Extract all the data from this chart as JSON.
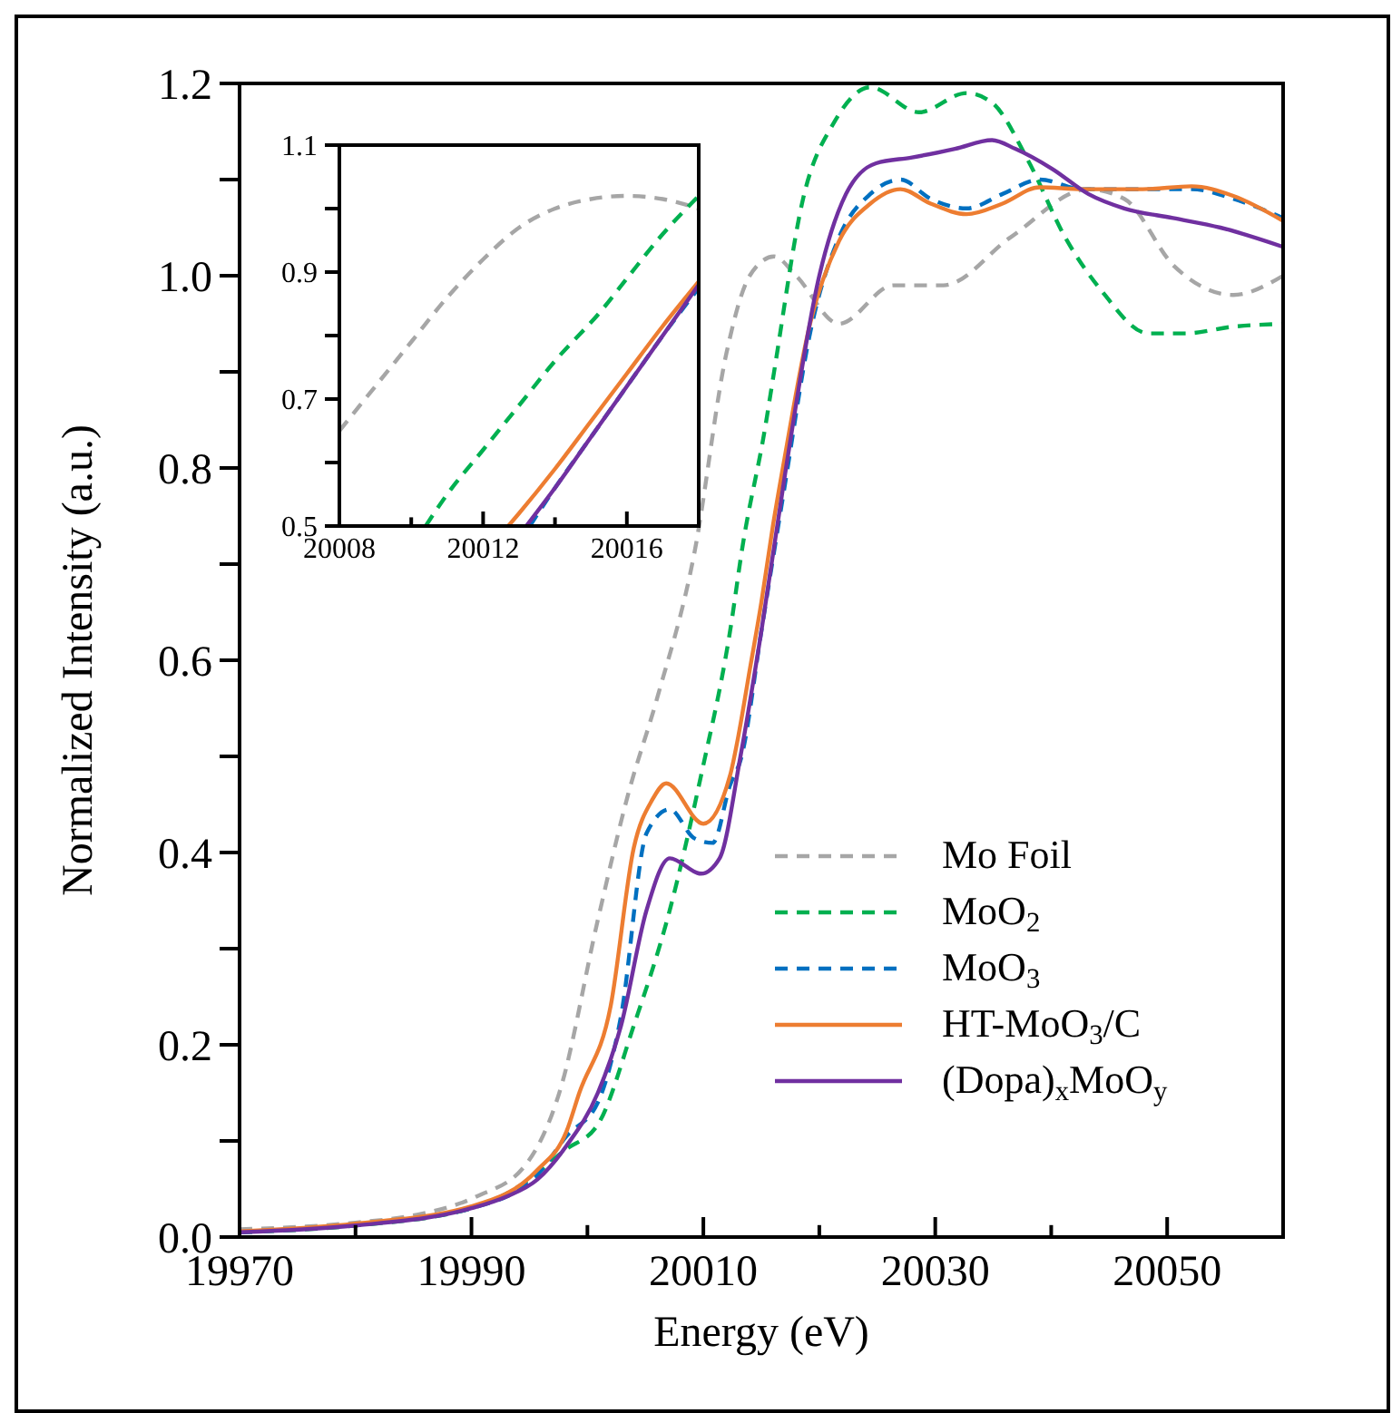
{
  "chart_data": [
    {
      "type": "line",
      "xlabel": "Energy (eV)",
      "ylabel": "Normalized Intensity (a.u.)",
      "xlim": [
        19970,
        20060
      ],
      "ylim": [
        0,
        1.2
      ],
      "xticks": [
        19970,
        {
          "value": 19980,
          "label": null
        },
        19990,
        {
          "value": 20000,
          "label": null
        },
        20010,
        {
          "value": 20020,
          "label": null
        },
        20030,
        {
          "value": 20040,
          "label": null
        },
        20050
      ],
      "yticks": [
        {
          "value": 0,
          "label": "0.0"
        },
        {
          "value": 0.1,
          "label": null
        },
        0.2,
        {
          "value": 0.3,
          "label": null
        },
        0.4,
        {
          "value": 0.5,
          "label": null
        },
        0.6,
        {
          "value": 0.7,
          "label": null
        },
        0.8,
        {
          "value": 0.9,
          "label": null
        },
        {
          "value": 1,
          "label": "1.0"
        },
        {
          "value": 1.1,
          "label": null
        },
        1.2
      ],
      "legend": "bottom right",
      "series": [
        {
          "name": "Mo Foil",
          "color": "#a6a6a6",
          "line_style": "dashed",
          "x": [
            19970,
            19980,
            19985.2,
            19990.4,
            19994.6,
            19997.7,
            20000.9,
            20003.5,
            20006,
            20009.2,
            20012,
            20014,
            20016.1,
            20018,
            20021.7,
            20026.4,
            20030.7,
            20036.5,
            20043.2,
            20046.3,
            20050.6,
            20055.7,
            20060
          ],
          "values": [
            0.008,
            0.015,
            0.023,
            0.042,
            0.074,
            0.155,
            0.33,
            0.46,
            0.56,
            0.71,
            0.92,
            1.0,
            1.02,
            1.0,
            0.95,
            0.99,
            0.99,
            1.04,
            1.09,
            1.08,
            1.01,
            0.98,
            1.0
          ]
        },
        {
          "name": "MoO$_{2}$",
          "color": "#00b050",
          "line_style": "dashed",
          "x": [
            19970,
            19980,
            19990,
            19995,
            19998,
            20000.9,
            20004,
            20007.1,
            20009.8,
            20012.3,
            20013.4,
            20015.3,
            20016.1,
            20018.6,
            20021.3,
            20024.4,
            20028.6,
            20032.7,
            20034.9,
            20038,
            20041.2,
            20044.3,
            20048.4,
            20051.5,
            20055.7,
            20060
          ],
          "values": [
            0.005,
            0.012,
            0.03,
            0.06,
            0.09,
            0.117,
            0.22,
            0.34,
            0.48,
            0.63,
            0.72,
            0.84,
            0.9,
            1.08,
            1.16,
            1.196,
            1.17,
            1.19,
            1.18,
            1.12,
            1.04,
            0.985,
            0.94,
            0.94,
            0.947,
            0.95
          ]
        },
        {
          "name": "MoO$_{3}$",
          "color": "#0070c0",
          "line_style": "dashed",
          "x": [
            19970,
            19980,
            19990,
            19995.7,
            19998.2,
            20000.9,
            20002.9,
            20005.1,
            20007.1,
            20009.2,
            20010.8,
            20012.3,
            20013.3,
            20015,
            20017,
            20019.2,
            20021.7,
            20024.4,
            20027,
            20029.6,
            20032.7,
            20035.8,
            20039,
            20042.7,
            20047.9,
            20052.1,
            20055.7,
            20060
          ],
          "values": [
            0.005,
            0.013,
            0.03,
            0.065,
            0.105,
            0.14,
            0.23,
            0.42,
            0.445,
            0.415,
            0.41,
            0.47,
            0.5,
            0.63,
            0.78,
            0.94,
            1.04,
            1.085,
            1.1,
            1.08,
            1.07,
            1.085,
            1.1,
            1.09,
            1.09,
            1.09,
            1.08,
            1.06
          ]
        },
        {
          "name": "HT-MoO$_{3}$/C",
          "color": "#ed7d31",
          "x": [
            19970,
            19980,
            19990,
            19995.7,
            19998.2,
            19999.3,
            20002,
            20004,
            20005.6,
            20006.8,
            20010,
            20012.3,
            20013,
            20014,
            20015,
            20016,
            20017,
            20019.2,
            20021.7,
            20024.4,
            20027,
            20029.6,
            20032.7,
            20035.8,
            20039,
            20042.7,
            20047.9,
            20052.1,
            20055.7,
            20060
          ],
          "values": [
            0.006,
            0.014,
            0.032,
            0.07,
            0.11,
            0.15,
            0.24,
            0.405,
            0.455,
            0.472,
            0.43,
            0.48,
            0.52,
            0.59,
            0.66,
            0.74,
            0.81,
            0.95,
            1.036,
            1.075,
            1.09,
            1.075,
            1.064,
            1.075,
            1.092,
            1.09,
            1.09,
            1.093,
            1.083,
            1.057
          ]
        },
        {
          "name": "(Dopa)$_{x}$MoO$_{y}$",
          "color": "#7030a0",
          "x": [
            19970,
            19980,
            19990,
            19993,
            19995.7,
            19998.2,
            20000.9,
            20002.9,
            20005.1,
            20007.1,
            20009.8,
            20011.4,
            20013.2,
            20015,
            20017,
            20020,
            20022.3,
            20024.9,
            20028,
            20031.7,
            20034.9,
            20036.9,
            20040.1,
            20043.2,
            20046.3,
            20050.5,
            20054.6,
            20060
          ],
          "values": [
            0.005,
            0.012,
            0.03,
            0.042,
            0.06,
            0.095,
            0.15,
            0.22,
            0.34,
            0.394,
            0.378,
            0.394,
            0.5,
            0.63,
            0.79,
            1.0,
            1.085,
            1.117,
            1.123,
            1.132,
            1.141,
            1.132,
            1.111,
            1.085,
            1.07,
            1.06,
            1.05,
            1.03
          ]
        }
      ]
    },
    {
      "type": "line",
      "xlim": [
        20008,
        20018
      ],
      "ylim": [
        0.5,
        1.1
      ],
      "xticks": [
        20008,
        {
          "value": 20010,
          "label": null
        },
        20012,
        {
          "value": 20014,
          "label": null
        },
        20016
      ],
      "yticks": [
        0.5,
        {
          "value": 0.6,
          "label": null
        },
        0.7,
        {
          "value": 0.8,
          "label": null
        },
        0.9,
        {
          "value": 1,
          "label": null
        },
        1.1
      ],
      "series": [
        {
          "color": "#a6a6a6",
          "line_style": "dashed",
          "x": [
            20008,
            20009,
            20010,
            20011,
            20012,
            20013,
            20014,
            20015,
            20016,
            20017,
            20018
          ],
          "values": [
            0.65,
            0.72,
            0.79,
            0.86,
            0.92,
            0.97,
            1.0,
            1.015,
            1.02,
            1.015,
            1.0
          ]
        },
        {
          "color": "#00b050",
          "line_style": "dashed",
          "x": [
            20010.4,
            20011,
            20012,
            20013,
            20014,
            20015.3,
            20016,
            20017,
            20018
          ],
          "values": [
            0.5,
            0.55,
            0.62,
            0.69,
            0.76,
            0.84,
            0.89,
            0.96,
            1.02
          ]
        },
        {
          "color": "#0070c0",
          "line_style": "dashed",
          "x": [
            20013.3,
            20014,
            20015,
            20016,
            20017,
            20018
          ],
          "values": [
            0.5,
            0.56,
            0.64,
            0.72,
            0.8,
            0.875
          ]
        },
        {
          "color": "#ed7d31",
          "x": [
            20012.7,
            20013,
            20014,
            20015,
            20016,
            20017,
            20018
          ],
          "values": [
            0.5,
            0.52,
            0.59,
            0.665,
            0.74,
            0.815,
            0.885
          ]
        },
        {
          "color": "#7030a0",
          "x": [
            20013.2,
            20014,
            20015,
            20016,
            20017,
            20018
          ],
          "values": [
            0.5,
            0.56,
            0.64,
            0.72,
            0.8,
            0.88
          ]
        }
      ]
    }
  ]
}
